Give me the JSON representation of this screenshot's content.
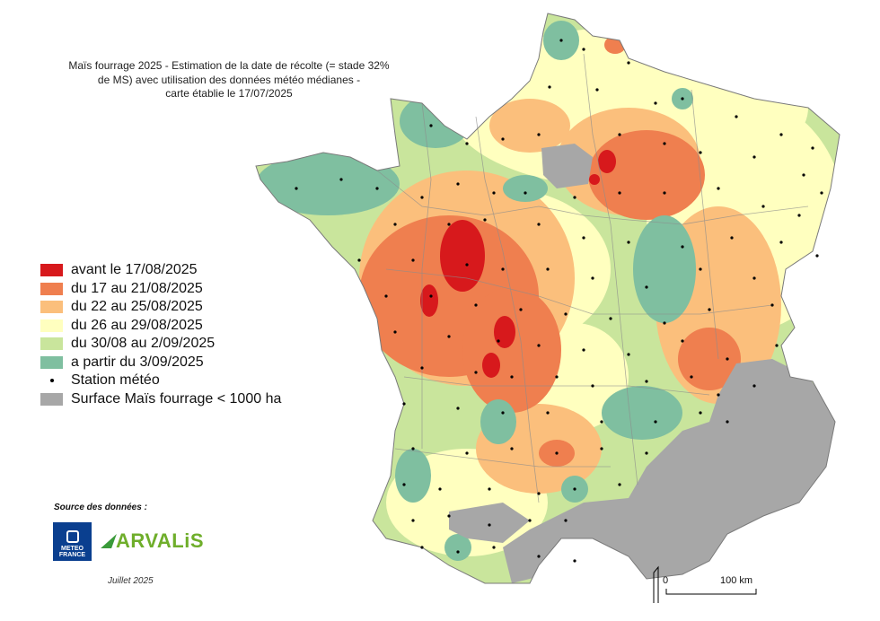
{
  "title_lines": [
    "Maïs fourrage 2025 - Estimation de la date de récolte (= stade 32%",
    "de MS) avec utilisation des données météo médianes -",
    "carte établie le 17/07/2025"
  ],
  "legend": [
    {
      "label": "avant le 17/08/2025",
      "color": "#d7191c"
    },
    {
      "label": "du 17 au 21/08/2025",
      "color": "#ef7f4f"
    },
    {
      "label": "du 22 au 25/08/2025",
      "color": "#fbbf7c"
    },
    {
      "label": "du 26 au 29/08/2025",
      "color": "#ffffbf"
    },
    {
      "label": "du 30/08 au 2/09/2025",
      "color": "#c9e59c"
    },
    {
      "label": "a partir du 3/09/2025",
      "color": "#7fbfa0"
    },
    {
      "label": "Station météo",
      "color": "#000000"
    },
    {
      "label": "Surface Maïs fourrage < 1000 ha",
      "color": "#a7a7a7"
    }
  ],
  "source_label": "Source des données :",
  "logos": {
    "meteo_line1": "METEO",
    "meteo_line2": "FRANCE",
    "arvalis": "ARVALiS"
  },
  "date_note": "Juillet 2025",
  "scale": {
    "zero": "0",
    "distance": "100 km"
  }
}
